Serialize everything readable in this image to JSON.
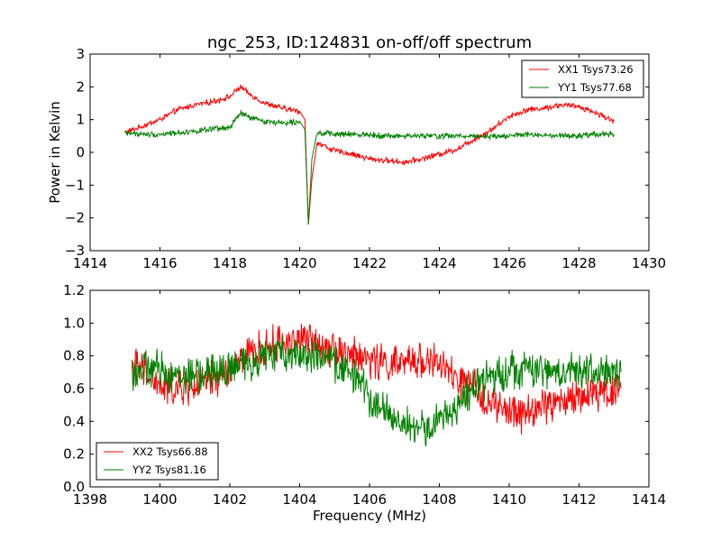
{
  "page": {
    "background": "#ffffff"
  },
  "chart_data": [
    {
      "type": "line",
      "title": "ngc_253, ID:124831 on-off/off spectrum",
      "xlabel": "",
      "ylabel": "Power in Kelvin",
      "xlim": [
        1414,
        1430
      ],
      "ylim": [
        -3,
        3
      ],
      "x_ticks": [
        1414,
        1416,
        1418,
        1420,
        1422,
        1424,
        1426,
        1428,
        1430
      ],
      "y_ticks": [
        -3,
        -2,
        -1,
        0,
        1,
        2,
        3
      ],
      "grid": false,
      "legend_position": "top-right",
      "series": [
        {
          "name": "XX1 Tsys73.26",
          "color": "#ff0000",
          "x": [
            1415.0,
            1415.5,
            1416.0,
            1416.5,
            1417.0,
            1417.5,
            1418.0,
            1418.3,
            1418.6,
            1419.0,
            1419.5,
            1420.0,
            1420.15,
            1420.25,
            1420.35,
            1420.5,
            1421.0,
            1421.5,
            1422.0,
            1422.5,
            1423.0,
            1423.5,
            1424.0,
            1424.5,
            1425.0,
            1425.5,
            1426.0,
            1426.5,
            1427.0,
            1427.5,
            1428.0,
            1428.5,
            1429.0
          ],
          "values": [
            0.6,
            0.8,
            1.0,
            1.3,
            1.45,
            1.55,
            1.7,
            2.0,
            1.75,
            1.5,
            1.35,
            1.25,
            1.0,
            -2.2,
            -0.8,
            0.3,
            0.05,
            -0.05,
            -0.2,
            -0.25,
            -0.3,
            -0.2,
            -0.05,
            0.1,
            0.4,
            0.7,
            1.1,
            1.3,
            1.35,
            1.45,
            1.4,
            1.2,
            0.95
          ]
        },
        {
          "name": "YY1 Tsys77.68",
          "color": "#008000",
          "x": [
            1415.0,
            1415.5,
            1416.0,
            1416.5,
            1417.0,
            1417.5,
            1418.0,
            1418.3,
            1418.6,
            1419.0,
            1419.5,
            1420.0,
            1420.15,
            1420.25,
            1420.35,
            1420.5,
            1421.0,
            1421.5,
            1422.0,
            1422.5,
            1423.0,
            1423.5,
            1424.0,
            1424.5,
            1425.0,
            1425.5,
            1426.0,
            1426.5,
            1427.0,
            1427.5,
            1428.0,
            1428.5,
            1429.0
          ],
          "values": [
            0.6,
            0.55,
            0.55,
            0.6,
            0.65,
            0.7,
            0.75,
            1.2,
            1.05,
            0.95,
            0.9,
            0.95,
            0.7,
            -2.2,
            -0.2,
            0.6,
            0.55,
            0.55,
            0.55,
            0.5,
            0.5,
            0.5,
            0.5,
            0.5,
            0.5,
            0.5,
            0.5,
            0.55,
            0.5,
            0.5,
            0.5,
            0.55,
            0.55
          ]
        }
      ]
    },
    {
      "type": "line",
      "title": "",
      "xlabel": "Frequency (MHz)",
      "ylabel": "",
      "xlim": [
        1398,
        1414
      ],
      "ylim": [
        0.0,
        1.2
      ],
      "x_ticks": [
        1398,
        1400,
        1402,
        1404,
        1406,
        1408,
        1410,
        1412,
        1414
      ],
      "y_ticks": [
        0.0,
        0.2,
        0.4,
        0.6,
        0.8,
        1.0,
        1.2
      ],
      "y_tick_labels": [
        "0.0",
        "0.2",
        "0.4",
        "0.6",
        "0.8",
        "1.0",
        "1.2"
      ],
      "grid": false,
      "legend_position": "bottom-left",
      "series": [
        {
          "name": "XX2 Tsys66.88",
          "color": "#ff0000",
          "x": [
            1399.2,
            1399.6,
            1400.0,
            1400.5,
            1401.0,
            1401.5,
            1402.0,
            1402.5,
            1403.0,
            1403.5,
            1404.0,
            1404.5,
            1405.0,
            1405.5,
            1406.0,
            1406.5,
            1407.0,
            1407.5,
            1408.0,
            1408.5,
            1409.0,
            1409.5,
            1410.0,
            1410.5,
            1411.0,
            1411.5,
            1412.0,
            1412.5,
            1413.2
          ],
          "values": [
            0.75,
            0.7,
            0.6,
            0.6,
            0.62,
            0.65,
            0.7,
            0.8,
            0.85,
            0.88,
            0.9,
            0.88,
            0.85,
            0.8,
            0.78,
            0.75,
            0.75,
            0.78,
            0.75,
            0.65,
            0.6,
            0.5,
            0.45,
            0.45,
            0.5,
            0.52,
            0.55,
            0.58,
            0.6
          ]
        },
        {
          "name": "YY2 Tsys81.16",
          "color": "#008000",
          "x": [
            1399.2,
            1399.6,
            1400.0,
            1400.5,
            1401.0,
            1401.5,
            1402.0,
            1402.5,
            1403.0,
            1403.5,
            1404.0,
            1404.5,
            1405.0,
            1405.5,
            1406.0,
            1406.5,
            1407.0,
            1407.5,
            1408.0,
            1408.5,
            1409.0,
            1409.5,
            1410.0,
            1410.5,
            1411.0,
            1411.5,
            1412.0,
            1412.5,
            1413.2
          ],
          "values": [
            0.7,
            0.72,
            0.72,
            0.68,
            0.68,
            0.7,
            0.72,
            0.75,
            0.8,
            0.82,
            0.82,
            0.8,
            0.75,
            0.7,
            0.55,
            0.45,
            0.38,
            0.35,
            0.4,
            0.5,
            0.6,
            0.68,
            0.72,
            0.72,
            0.7,
            0.7,
            0.72,
            0.7,
            0.7
          ]
        }
      ]
    }
  ]
}
